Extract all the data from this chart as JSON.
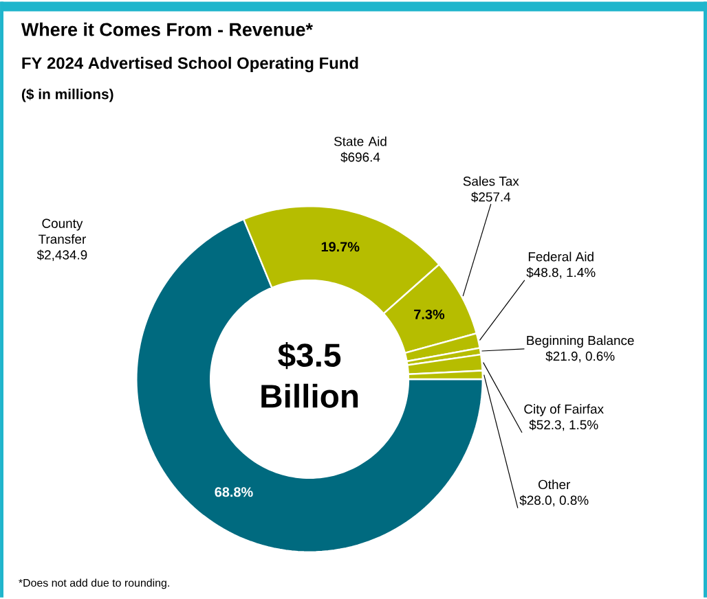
{
  "chart_data": {
    "type": "donut",
    "title": "Where it Comes From - Revenue*",
    "subtitle": "FY 2024 Advertised School Operating Fund",
    "categories": [
      "County Transfer",
      "State Aid",
      "Sales Tax",
      "Federal Aid",
      "Beginning Balance",
      "City of Fairfax",
      "Other"
    ],
    "values": [
      2434.9,
      696.4,
      257.4,
      48.8,
      21.9,
      52.3,
      28.0
    ],
    "colors": [
      "#006a7f",
      "#b6bd00",
      "#b6bd00",
      "#b6bd00",
      "#b6bd00",
      "#b6bd00",
      "#b6bd00"
    ],
    "value_labels": [
      "$2,434.9",
      "$696.4",
      "$257.4",
      "$48.8, 1.4%",
      "$21.9, 0.6%",
      "$52.3, 1.5%",
      "$28.0, 0.8%"
    ],
    "annotations": [
      "($ in millions)",
      "$3.5 Billion",
      "*Does not add due to rounding.",
      {
        "text": "68.8%",
        "x": "County Transfer"
      },
      {
        "text": "19.7%",
        "x": "State Aid"
      },
      {
        "text": "7.3%",
        "x": "Sales Tax"
      }
    ]
  }
}
